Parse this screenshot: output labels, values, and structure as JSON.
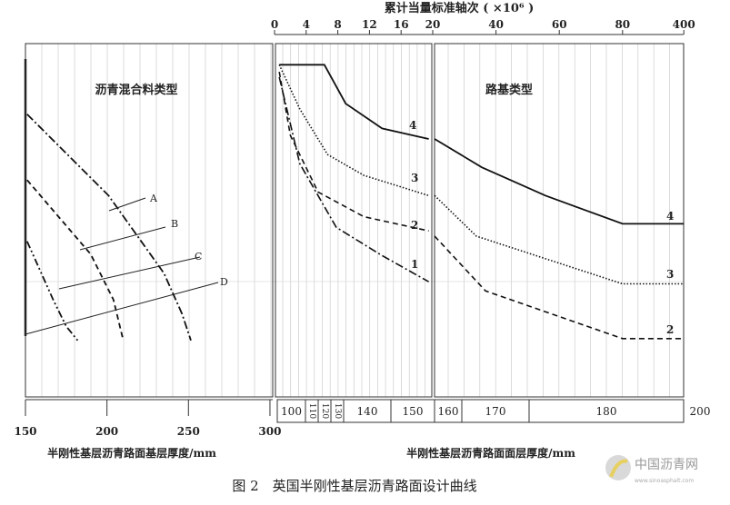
{
  "chart_data": {
    "type": "line",
    "caption": "图 2　英国半刚性基层沥青路面设计曲线",
    "top_axis": {
      "label": "累计当量标准轴次 ( ×10⁶ )",
      "ticks": [
        "0",
        "4",
        "8",
        "12",
        "16",
        "20",
        "40",
        "60",
        "80",
        "400"
      ]
    },
    "left_panel": {
      "title": "沥青混合料类型",
      "xlabel": "半刚性基层沥青路面基层厚度/mm",
      "ticks": [
        "150",
        "200",
        "250",
        "300"
      ],
      "xlim": [
        150,
        300
      ],
      "curve_labels": [
        "A",
        "B",
        "C",
        "D"
      ],
      "curves": [
        {
          "style": "dash-dot",
          "points": [
            [
              151,
              80
            ],
            [
              201,
              57
            ],
            [
              235,
              35
            ],
            [
              246,
              23.6
            ],
            [
              251.5,
              16
            ]
          ]
        },
        {
          "style": "dashed",
          "points": [
            [
              151,
              61.4
            ],
            [
              190,
              40.4
            ],
            [
              204,
              27.5
            ],
            [
              210,
              16
            ]
          ]
        },
        {
          "style": "dash-dot-dot",
          "points": [
            [
              151,
              44
            ],
            [
              167,
              27.5
            ],
            [
              175,
              20
            ],
            [
              182,
              16
            ]
          ]
        }
      ]
    },
    "right_panel": {
      "title": "路基类型",
      "xlabel": "半刚性基层沥青路面面层厚度/mm",
      "thickness_bands": [
        "100",
        "110",
        "120",
        "130",
        "140",
        "150",
        "160",
        "170",
        "180",
        "200"
      ],
      "series": [
        {
          "name": "4",
          "style": "solid",
          "points": [
            [
              0.6,
              94
            ],
            [
              6.3,
              94
            ],
            [
              9,
              83
            ],
            [
              13.6,
              76
            ],
            [
              19.5,
              73
            ],
            [
              20.6,
              73
            ],
            [
              35.5,
              65
            ],
            [
              55.6,
              57
            ],
            [
              80,
              49
            ],
            [
              400,
              49
            ]
          ]
        },
        {
          "name": "3",
          "style": "dotted",
          "points": [
            [
              0.6,
              94
            ],
            [
              3.2,
              81.5
            ],
            [
              6.7,
              68.6
            ],
            [
              11.3,
              62.7
            ],
            [
              19.5,
              57
            ],
            [
              20.6,
              57
            ],
            [
              33.8,
              45.5
            ],
            [
              80,
              32
            ],
            [
              400,
              32
            ]
          ]
        },
        {
          "name": "2",
          "style": "dashed",
          "points": [
            [
              0.6,
              92
            ],
            [
              2,
              74
            ],
            [
              5.5,
              58
            ],
            [
              11.3,
              51
            ],
            [
              19.5,
              47
            ],
            [
              20.6,
              45.5
            ],
            [
              36.7,
              30
            ],
            [
              80,
              16.5
            ],
            [
              400,
              16.5
            ]
          ]
        },
        {
          "name": "1",
          "style": "dash-dot",
          "points": [
            [
              0.6,
              90.5
            ],
            [
              3.2,
              66
            ],
            [
              7.8,
              48
            ],
            [
              13.6,
              40
            ],
            [
              19.5,
              32.6
            ]
          ]
        }
      ]
    }
  },
  "watermark": {
    "name": "中国沥青网",
    "url_text": "www.sinoasphalt.com"
  }
}
